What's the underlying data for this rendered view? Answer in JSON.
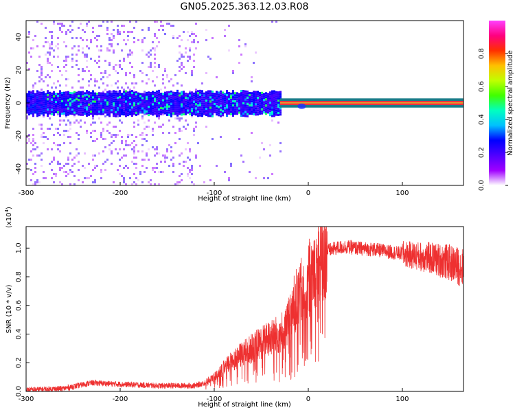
{
  "title": "GN05.2025.363.12.03.R08",
  "chart_data": [
    {
      "type": "heatmap",
      "xlabel": "Height of straight line (km)",
      "ylabel": "Frequency (Hz)",
      "xlim": [
        -300,
        165
      ],
      "ylim": [
        -50,
        50
      ],
      "xticks": [
        -300,
        -200,
        -100,
        0,
        100
      ],
      "yticks": [
        -40,
        -20,
        0,
        20,
        40
      ],
      "ytick_labels": [
        "-40",
        "-20",
        "0",
        "20",
        "40"
      ],
      "colorbar": {
        "label": "Normalized spectral amplitude",
        "range": [
          0,
          1
        ],
        "ticks": [
          0.0,
          0.2,
          0.4,
          0.6,
          0.8
        ],
        "tick_labels": [
          "0.0",
          "0.2",
          "0.4",
          "0.6",
          "0.8"
        ],
        "colors": [
          "#ffffff",
          "#a000ff",
          "#5000ff",
          "#0000ff",
          "#00c0ff",
          "#00ffc0",
          "#40ff00",
          "#c0ff00",
          "#ffc000",
          "#ff3000",
          "#ff0080",
          "#ff40ff"
        ]
      },
      "features": [
        {
          "name": "main band",
          "x_range": [
            -300,
            -30
          ],
          "freq_center": 0,
          "freq_halfwidth": 7
        },
        {
          "name": "carrier line",
          "x_range": [
            -30,
            165
          ],
          "freq_center": 0,
          "amplitude": 0.75
        }
      ]
    },
    {
      "type": "line",
      "xlabel": "Height of straight line (km)",
      "ylabel": "SNR (10 * v/v)",
      "y_multiplier": "(x10",
      "y_multiplier_exp": "4",
      "y_multiplier_close": ")",
      "xlim": [
        -300,
        165
      ],
      "ylim": [
        0,
        1.15
      ],
      "xticks": [
        -300,
        -200,
        -100,
        0,
        100
      ],
      "yticks": [
        0.0,
        0.2,
        0.4,
        0.6,
        0.8,
        1.0
      ],
      "ytick_labels": [
        "0.0",
        "0.2",
        "0.4",
        "0.6",
        "0.8",
        "1.0"
      ],
      "color": "#ee3030",
      "envelope": {
        "x": [
          -300,
          -260,
          -230,
          -200,
          -160,
          -120,
          -110,
          -100,
          -90,
          -80,
          -70,
          -60,
          -50,
          -40,
          -30,
          -20,
          -15,
          -10,
          -5,
          0,
          10,
          20,
          30,
          40,
          50,
          70,
          90,
          110,
          130,
          150,
          165
        ],
        "y": [
          0.01,
          0.02,
          0.06,
          0.05,
          0.04,
          0.04,
          0.06,
          0.1,
          0.16,
          0.22,
          0.26,
          0.3,
          0.34,
          0.37,
          0.4,
          0.5,
          0.6,
          0.68,
          0.72,
          0.78,
          0.92,
          0.98,
          1.0,
          1.01,
          1.0,
          0.99,
          0.97,
          0.95,
          0.93,
          0.9,
          0.86
        ]
      }
    }
  ]
}
